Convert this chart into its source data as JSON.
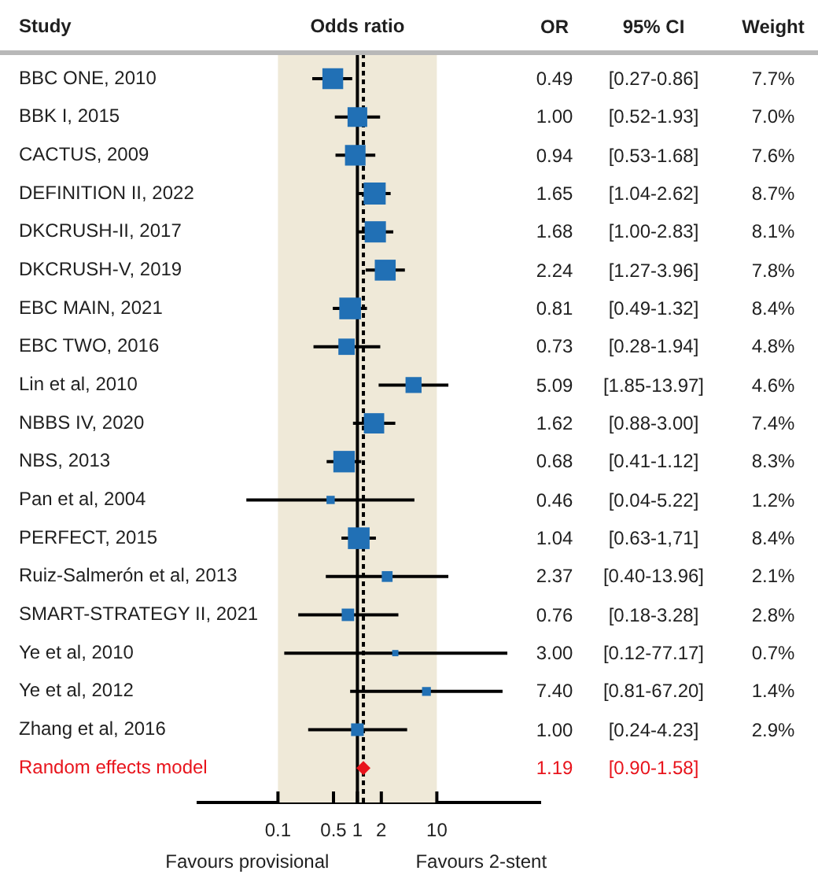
{
  "chart_data": [
    {
      "type": "scatter",
      "title": "Odds ratio",
      "ylabel": "Study",
      "orientation": "horizontal",
      "log": "x",
      "categories": [
        "BBC ONE, 2010",
        "BBK I, 2015",
        "CACTUS, 2009",
        "DEFINITION II, 2022",
        "DKCRUSH-II, 2017",
        "DKCRUSH-V, 2019",
        "EBC MAIN, 2021",
        "EBC TWO, 2016",
        "Lin et al, 2010",
        "NBBS IV, 2020",
        "NBS, 2013",
        "Pan et al, 2004",
        "PERFECT, 2015",
        "Ruiz-Salmerón et al, 2013",
        "SMART-STRATEGY II, 2021",
        "Ye et al, 2010",
        "Ye et al, 2012",
        "Zhang et al, 2016",
        null
      ],
      "series": [
        {
          "type": "bubble",
          "color": "#2170b5",
          "marker": "square",
          "values": [
            0.49,
            1,
            0.94,
            1.65,
            1.68,
            2.24,
            0.81,
            0.73,
            5.09,
            1.62,
            0.68,
            0.46,
            1.04,
            2.37,
            0.76,
            3,
            7.4,
            1,
            null
          ],
          "errors": [
            [
              0.27,
              0.86
            ],
            [
              0.52,
              1.93
            ],
            [
              0.53,
              1.68
            ],
            [
              1.04,
              2.62
            ],
            [
              1,
              2.83
            ],
            [
              1.27,
              3.96
            ],
            [
              0.49,
              1.32
            ],
            [
              0.28,
              1.94
            ],
            [
              1.85,
              13.97
            ],
            [
              0.88,
              3
            ],
            [
              0.41,
              1.12
            ],
            [
              0.04,
              5.22
            ],
            [
              0.63,
              1.71
            ],
            [
              0.4,
              13.96
            ],
            [
              0.18,
              3.28
            ],
            [
              0.12,
              77.17
            ],
            [
              0.81,
              67.2
            ],
            [
              0.24,
              4.23
            ],
            null
          ],
          "sizes": [
            0.89,
            0.8,
            0.87,
            1,
            0.93,
            0.9,
            0.97,
            0.55,
            0.53,
            0.85,
            0.95,
            0.14,
            0.97,
            0.24,
            0.32,
            0.08,
            0.16,
            0.33,
            null
          ]
        },
        {
          "name": "Random effects model",
          "type": "scatter",
          "color": "#e8141c",
          "marker": "diamond",
          "values": [
            null,
            null,
            null,
            null,
            null,
            null,
            null,
            null,
            null,
            null,
            null,
            null,
            null,
            null,
            null,
            null,
            null,
            null,
            1.19
          ]
        }
      ],
      "xlim": [
        0.01,
        200
      ],
      "xticks": [
        0.1,
        0.5,
        1,
        2,
        10
      ],
      "bands": [
        {
          "axis": "x",
          "from": 0.1,
          "to": 10,
          "color": "#efe9d8"
        }
      ],
      "ref_lines": [
        {
          "axis": "x",
          "value": 1,
          "color": "#000000"
        },
        {
          "axis": "x",
          "value": 1.19,
          "color": "#000000",
          "line_style": "dotted"
        }
      ],
      "annotations": [
        "Favours provisional",
        "Favours 2-stent"
      ]
    },
    {
      "type": "other",
      "annotations": [
        "OR",
        "95% CI",
        "Weight",
        "0.49",
        "[0.27-0.86]",
        "7.7%",
        "1.00",
        "[0.52-1.93]",
        "7.0%",
        "0.94",
        "[0.53-1.68]",
        "7.6%",
        "1.65",
        "[1.04-2.62]",
        "8.7%",
        "1.68",
        "[1.00-2.83]",
        "8.1%",
        "2.24",
        "[1.27-3.96]",
        "7.8%",
        "0.81",
        "[0.49-1.32]",
        "8.4%",
        "0.73",
        "[0.28-1.94]",
        "4.8%",
        "5.09",
        "[1.85-13.97]",
        "4.6%",
        "1.62",
        "[0.88-3.00]",
        "7.4%",
        "0.68",
        "[0.41-1.12]",
        "8.3%",
        "0.46",
        "[0.04-5.22]",
        "1.2%",
        "1.04",
        "[0.63-1,71]",
        "8.4%",
        "2.37",
        "[0.40-13.96]",
        "2.1%",
        "0.76",
        "[0.18-3.28]",
        "2.8%",
        "3.00",
        "[0.12-77.17]",
        "0.7%",
        "7.40",
        "[0.81-67.20]",
        "1.4%",
        "1.00",
        "[0.24-4.23]",
        "2.9%",
        "1.19",
        "[0.90-1.58]"
      ]
    }
  ]
}
